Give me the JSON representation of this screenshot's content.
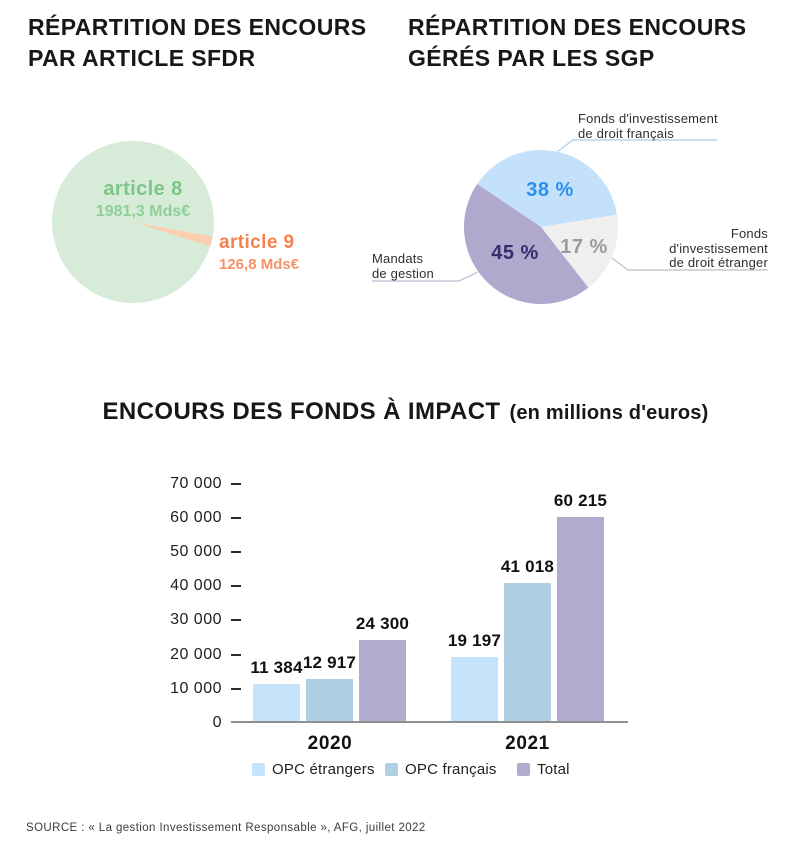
{
  "header": {
    "left_title": [
      "RÉPARTITION DES ENCOURS",
      "PAR ARTICLE SFDR"
    ],
    "right_title": [
      "RÉPARTITION DES ENCOURS",
      "GÉRÉS PAR LES SGP"
    ]
  },
  "chart_data": [
    {
      "type": "pie",
      "title": "RÉPARTITION DES ENCOURS PAR ARTICLE SFDR",
      "unit": "Mds€",
      "slices": [
        {
          "label": "article 8",
          "value": 1981.3,
          "value_label": "1981,3 Mds€",
          "color": "#d6ecd8",
          "label_color": "#7cc687"
        },
        {
          "label": "article 9",
          "value": 126.8,
          "value_label": "126,8 Mds€",
          "color": "#fbceb1",
          "label_color": "#f5824e"
        }
      ],
      "layout": {
        "wedge_angles_deg": [
          -10.5,
          -17.5
        ]
      }
    },
    {
      "type": "pie",
      "title": "RÉPARTITION DES ENCOURS GÉRÉS PAR LES SGP",
      "start_angle_deg": 146,
      "direction": "clockwise",
      "slices": [
        {
          "label": "Fonds d'investissement de droit français",
          "label_lines": [
            "Fonds d'investissement",
            "de droit français"
          ],
          "pct": 38,
          "pct_label": "38 %",
          "color": "#c3e1fa",
          "pct_color": "#2e8ff2"
        },
        {
          "label": "Fonds d'investissement de droit étranger",
          "label_lines": [
            "Fonds",
            "d'investissement",
            "de droit étranger"
          ],
          "pct": 17,
          "pct_label": "17 %",
          "color": "#efefef",
          "pct_color": "#9b9b9b"
        },
        {
          "label": "Mandats de gestion",
          "label_lines": [
            "Mandats",
            "de gestion"
          ],
          "pct": 45,
          "pct_label": "45 %",
          "color": "#b1a9cd",
          "pct_color": "#392c6e"
        }
      ]
    },
    {
      "type": "bar",
      "title": "ENCOURS DES FONDS À IMPACT",
      "subtitle": "(en millions d'euros)",
      "categories": [
        "2020",
        "2021"
      ],
      "series": [
        {
          "name": "OPC étrangers",
          "color": "#c5e3fa",
          "values": [
            11384,
            19197
          ]
        },
        {
          "name": "OPC français",
          "color": "#aed0e2",
          "values": [
            12917,
            41018
          ]
        },
        {
          "name": "Total",
          "color": "#b2abce",
          "values": [
            24300,
            60215
          ]
        }
      ],
      "value_labels": [
        [
          "11 384",
          "12 917",
          "24 300"
        ],
        [
          "19 197",
          "41 018",
          "60 215"
        ]
      ],
      "ylim": [
        0,
        70000
      ],
      "ytick_step": 10000,
      "ytick_labels": [
        "0",
        "10 000",
        "20 000",
        "30 000",
        "40 000",
        "50 000",
        "60 000",
        "70 000"
      ],
      "legend_position": "bottom",
      "grid": false
    }
  ],
  "source": {
    "text": "SOURCE : « La gestion Investissement Responsable », AFG, juillet 2022"
  }
}
